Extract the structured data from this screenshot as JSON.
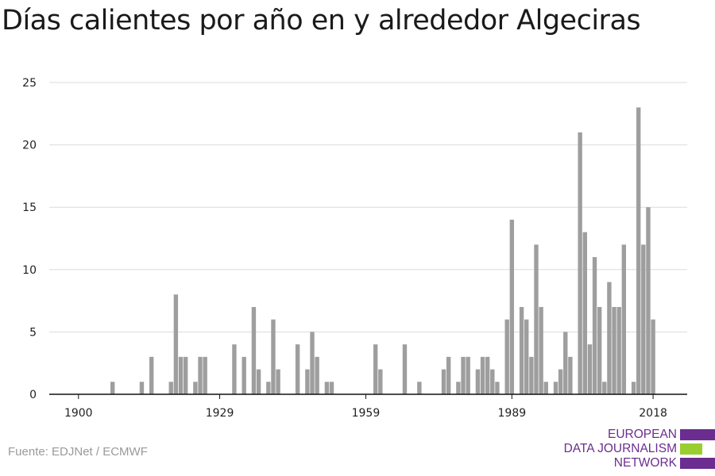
{
  "title": "Días calientes por año en y alrededor Algeciras",
  "source": "Fuente: EDJNet / ECMWF",
  "logo": {
    "line1": "EUROPEAN",
    "line2": "DATA JOURNALISM",
    "line3": "NETWORK",
    "colors": {
      "purple": "#6b2d8f",
      "green": "#9acd32"
    }
  },
  "chart_data": {
    "type": "bar",
    "title": "Días calientes por año en y alrededor Algeciras",
    "xlabel": "",
    "ylabel": "",
    "xlim": [
      1894,
      2025
    ],
    "ylim": [
      0,
      25
    ],
    "xticks": [
      1900,
      1929,
      1959,
      1989,
      2018
    ],
    "yticks": [
      0,
      5,
      10,
      15,
      20,
      25
    ],
    "grid": true,
    "bar_color": "#9e9e9e",
    "x": [
      1907,
      1913,
      1915,
      1919,
      1920,
      1921,
      1922,
      1924,
      1925,
      1926,
      1932,
      1934,
      1936,
      1937,
      1939,
      1940,
      1941,
      1945,
      1947,
      1948,
      1949,
      1951,
      1952,
      1961,
      1962,
      1967,
      1970,
      1975,
      1976,
      1978,
      1979,
      1980,
      1982,
      1983,
      1984,
      1985,
      1986,
      1988,
      1989,
      1991,
      1992,
      1993,
      1994,
      1995,
      1996,
      1998,
      1999,
      2000,
      2001,
      2003,
      2004,
      2005,
      2006,
      2007,
      2008,
      2009,
      2010,
      2011,
      2012,
      2014,
      2015,
      2016,
      2017,
      2018
    ],
    "values": [
      1,
      1,
      3,
      1,
      8,
      3,
      3,
      1,
      3,
      3,
      4,
      3,
      7,
      2,
      1,
      6,
      2,
      4,
      2,
      5,
      3,
      1,
      1,
      4,
      2,
      4,
      1,
      2,
      3,
      1,
      3,
      3,
      2,
      3,
      3,
      2,
      1,
      6,
      14,
      7,
      6,
      3,
      12,
      7,
      1,
      1,
      2,
      5,
      3,
      21,
      13,
      4,
      11,
      7,
      1,
      9,
      7,
      7,
      12,
      1,
      23,
      12,
      15,
      6
    ]
  }
}
